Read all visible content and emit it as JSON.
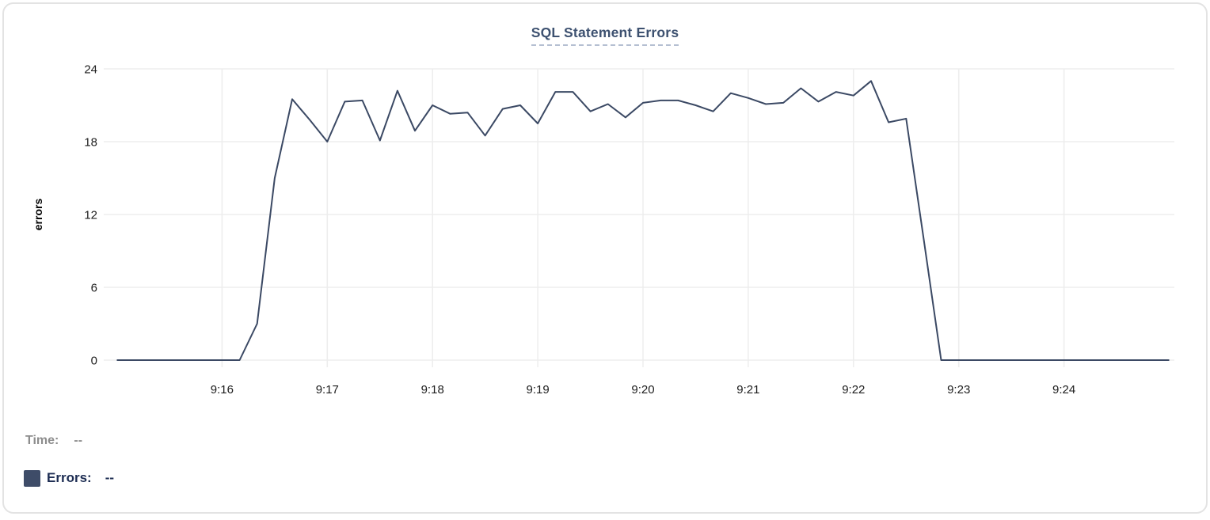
{
  "panel": {
    "background": "#ffffff",
    "border_color": "#e3e3e3"
  },
  "chart": {
    "title": "SQL Statement Errors",
    "title_color": "#3d5170",
    "title_underline_color": "#b5bfd2",
    "grid_color": "#ededed",
    "tick_text_color": "#1c1c1c",
    "line_color": "#3b4964"
  },
  "chart_data": {
    "type": "line",
    "title": "SQL Statement Errors",
    "xlabel": "",
    "ylabel": "errors",
    "ylim": [
      0,
      24
    ],
    "yticks": [
      0,
      6,
      12,
      18,
      24
    ],
    "xticks": [
      "9:16",
      "9:17",
      "9:18",
      "9:19",
      "9:20",
      "9:21",
      "9:22",
      "9:23",
      "9:24"
    ],
    "grid": true,
    "legend_position": "bottom-left",
    "x": [
      "9:15:00",
      "9:15:10",
      "9:15:20",
      "9:15:30",
      "9:15:40",
      "9:15:50",
      "9:16:00",
      "9:16:10",
      "9:16:20",
      "9:16:30",
      "9:16:40",
      "9:16:50",
      "9:17:00",
      "9:17:10",
      "9:17:20",
      "9:17:30",
      "9:17:40",
      "9:17:50",
      "9:18:00",
      "9:18:10",
      "9:18:20",
      "9:18:30",
      "9:18:40",
      "9:18:50",
      "9:19:00",
      "9:19:10",
      "9:19:20",
      "9:19:30",
      "9:19:40",
      "9:19:50",
      "9:20:00",
      "9:20:10",
      "9:20:20",
      "9:20:30",
      "9:20:40",
      "9:20:50",
      "9:21:00",
      "9:21:10",
      "9:21:20",
      "9:21:30",
      "9:21:40",
      "9:21:50",
      "9:22:00",
      "9:22:10",
      "9:22:20",
      "9:22:30",
      "9:22:40",
      "9:22:50",
      "9:23:00",
      "9:23:10",
      "9:23:20",
      "9:23:30",
      "9:23:40",
      "9:23:50",
      "9:24:00",
      "9:24:10",
      "9:24:20",
      "9:24:30",
      "9:24:40",
      "9:24:50",
      "9:25:00"
    ],
    "series": [
      {
        "name": "Errors",
        "color": "#3b4964",
        "values": [
          0,
          0,
          0,
          0,
          0,
          0,
          0,
          0,
          3,
          15,
          21.5,
          19.8,
          18,
          21.3,
          21.4,
          18.1,
          22.2,
          18.9,
          21,
          20.3,
          20.4,
          18.5,
          20.7,
          21,
          19.5,
          22.1,
          22.1,
          20.5,
          21.1,
          20,
          21.2,
          21.4,
          21.4,
          21,
          20.5,
          22,
          21.6,
          21.1,
          21.2,
          22.4,
          21.3,
          22.1,
          21.8,
          23,
          19.6,
          19.9,
          10,
          0,
          0,
          0,
          0,
          0,
          0,
          0,
          0,
          0,
          0,
          0,
          0,
          0,
          0
        ]
      }
    ]
  },
  "legend": {
    "time_label": "Time:",
    "time_value": "--",
    "errors_label": "Errors:",
    "errors_value": "--",
    "swatch_color": "#3e4c68"
  }
}
